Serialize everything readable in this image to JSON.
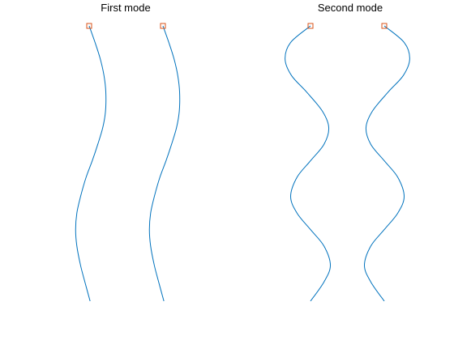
{
  "colors": {
    "curve": "#0072BD",
    "marker": "#D95319",
    "background": "#ffffff"
  },
  "chart_data": [
    {
      "type": "line",
      "title": "First mode",
      "xlabel": "",
      "ylabel": "",
      "axes_visible": false,
      "xlim": [
        -1.5,
        1.5
      ],
      "ylim": [
        -1.02,
        0.02
      ],
      "grid": false,
      "series": [
        {
          "x": [
            0.0,
            0.19,
            0.36,
            0.48,
            0.54,
            0.53,
            0.44,
            0.28,
            0.1,
            -0.1,
            -0.28,
            -0.4,
            -0.44,
            -0.4,
            -0.28,
            -0.14,
            0.03
          ],
          "y": [
            0.0,
            -0.06,
            -0.12,
            -0.18,
            -0.24,
            -0.31,
            -0.37,
            -0.43,
            -0.49,
            -0.55,
            -0.62,
            -0.68,
            -0.74,
            -0.8,
            -0.87,
            -0.93,
            -1.0
          ]
        },
        {
          "x": [
            0.0,
            0.19,
            0.36,
            0.48,
            0.54,
            0.53,
            0.44,
            0.28,
            0.1,
            -0.1,
            -0.28,
            -0.4,
            -0.44,
            -0.4,
            -0.28,
            -0.14,
            0.03
          ],
          "y": [
            0.0,
            -0.06,
            -0.12,
            -0.18,
            -0.24,
            -0.31,
            -0.37,
            -0.43,
            -0.49,
            -0.55,
            -0.62,
            -0.68,
            -0.74,
            -0.8,
            -0.87,
            -0.93,
            -1.0
          ]
        }
      ],
      "markers": [
        {
          "shape": "square",
          "x": 0.0,
          "y": 0.0
        },
        {
          "shape": "square",
          "x": 0.0,
          "y": 0.0
        }
      ]
    },
    {
      "type": "line",
      "title": "Second mode",
      "xlabel": "",
      "ylabel": "",
      "axes_visible": false,
      "xlim": [
        -1.5,
        1.5
      ],
      "ylim": [
        -1.02,
        0.02
      ],
      "grid": false,
      "series": [
        {
          "x": [
            0.0,
            -0.5,
            -0.64,
            -0.48,
            -0.1,
            0.3,
            0.46,
            0.34,
            0.0,
            -0.34,
            -0.5,
            -0.34,
            0.0,
            0.34,
            0.5,
            0.34,
            0.0
          ],
          "y": [
            0.0,
            -0.06,
            -0.12,
            -0.18,
            -0.24,
            -0.31,
            -0.37,
            -0.43,
            -0.49,
            -0.55,
            -0.62,
            -0.68,
            -0.74,
            -0.8,
            -0.87,
            -0.93,
            -1.0
          ]
        },
        {
          "x": [
            0.0,
            0.5,
            0.64,
            0.48,
            0.1,
            -0.3,
            -0.46,
            -0.34,
            0.0,
            0.34,
            0.5,
            0.34,
            0.0,
            -0.34,
            -0.5,
            -0.34,
            0.0
          ],
          "y": [
            0.0,
            -0.06,
            -0.12,
            -0.18,
            -0.24,
            -0.31,
            -0.37,
            -0.43,
            -0.49,
            -0.55,
            -0.62,
            -0.68,
            -0.74,
            -0.8,
            -0.87,
            -0.93,
            -1.0
          ]
        }
      ],
      "markers": [
        {
          "shape": "square",
          "x": 0.0,
          "y": 0.0
        },
        {
          "shape": "square",
          "x": 0.0,
          "y": 0.0
        }
      ]
    }
  ]
}
